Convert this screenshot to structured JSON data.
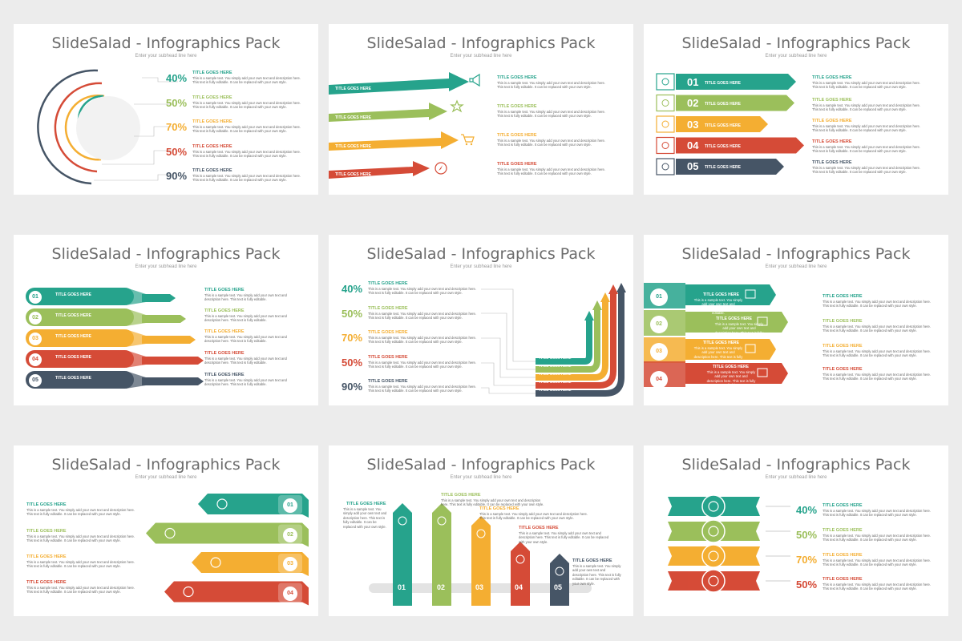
{
  "colors": {
    "teal": "#26a38c",
    "green": "#9bbf5b",
    "orange": "#f4ae32",
    "red": "#d54b37",
    "navy": "#465566"
  },
  "slide_title": "SlideSalad - Infographics Pack",
  "slide_subtitle": "Enter your subhead line here",
  "item_title": "TITLE GOES HERE",
  "desc_long": "This is a sample text. You simply add your own text and description here. This text is fully editable. It can be replaced with your own style.",
  "desc_short": "This is a sample text. You simply add your own text and description here. This text is fully editable.",
  "percents_a": [
    "40%",
    "50%",
    "70%",
    "50%",
    "90%"
  ],
  "percents_b": [
    "40%",
    "50%",
    "70%",
    "50%"
  ],
  "numbers_5": [
    "01",
    "02",
    "03",
    "04",
    "05"
  ],
  "numbers_4": [
    "01",
    "02",
    "03",
    "04"
  ],
  "icons": {
    "slide2": [
      "megaphone-icon",
      "star-icon",
      "cart-icon",
      "compass-icon"
    ],
    "slide3": [
      "search-icon",
      "shield-icon",
      "gear-icon",
      "trophy-icon",
      "user-icon"
    ],
    "slide6": [
      "megaphone-icon",
      "image-icon",
      "layers-icon",
      "search-icon"
    ],
    "slide7": [
      "share-icon",
      "shuffle-icon",
      "speaker-icon",
      "star-icon"
    ],
    "slide8": [
      "shuffle-icon",
      "speaker-icon",
      "share-icon",
      "star-icon",
      "layers-icon"
    ],
    "slide9": [
      "cloud-upload-icon",
      "location-icon",
      "cart-icon",
      "gear-icon"
    ]
  }
}
